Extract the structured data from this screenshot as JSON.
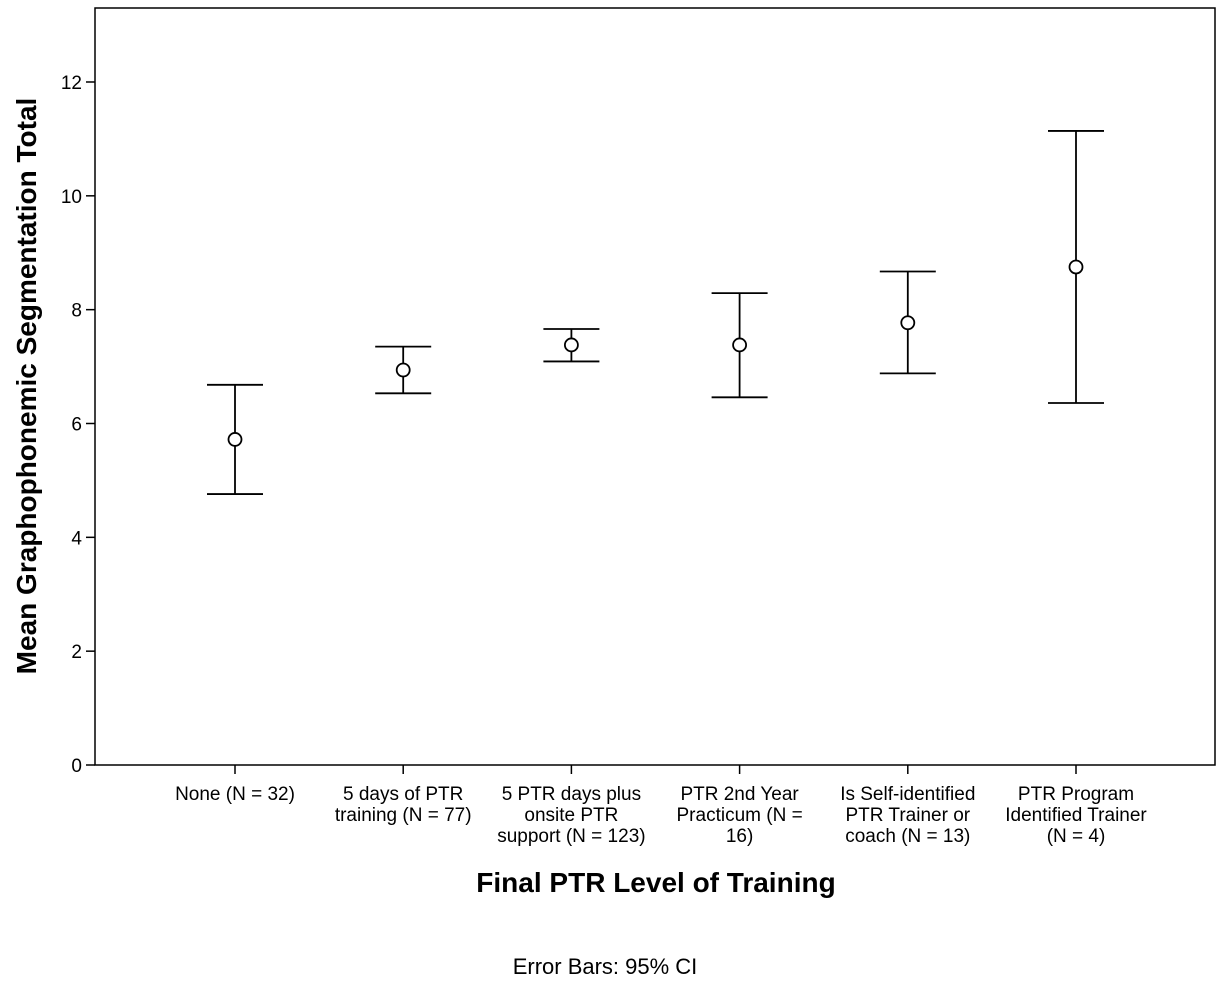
{
  "chart_data": {
    "type": "scatter",
    "subtype": "error-bar",
    "xlabel": "Final PTR Level of Training",
    "ylabel": "Mean Graphophonemic Segmentation Total",
    "ylim": [
      0,
      13.3
    ],
    "yticks": [
      0,
      2,
      4,
      6,
      8,
      10,
      12
    ],
    "grid": false,
    "footnote": "Error Bars: 95% CI",
    "categories": [
      {
        "lines": [
          "None (N = 32)"
        ]
      },
      {
        "lines": [
          "5 days of PTR",
          "training (N = 77)"
        ]
      },
      {
        "lines": [
          "5 PTR days plus",
          "onsite PTR",
          "support (N = 123)"
        ]
      },
      {
        "lines": [
          "PTR 2nd Year",
          "Practicum (N =",
          "16)"
        ]
      },
      {
        "lines": [
          "Is Self-identified",
          "PTR Trainer or",
          "coach (N = 13)"
        ]
      },
      {
        "lines": [
          "PTR Program",
          "Identified Trainer",
          "(N = 4)"
        ]
      }
    ],
    "points": [
      {
        "mean": 5.72,
        "lower": 4.76,
        "upper": 6.68
      },
      {
        "mean": 6.94,
        "lower": 6.53,
        "upper": 7.35
      },
      {
        "mean": 7.38,
        "lower": 7.09,
        "upper": 7.66
      },
      {
        "mean": 7.38,
        "lower": 6.46,
        "upper": 8.29
      },
      {
        "mean": 7.77,
        "lower": 6.88,
        "upper": 8.67
      },
      {
        "mean": 8.75,
        "lower": 6.36,
        "upper": 11.14
      }
    ]
  }
}
